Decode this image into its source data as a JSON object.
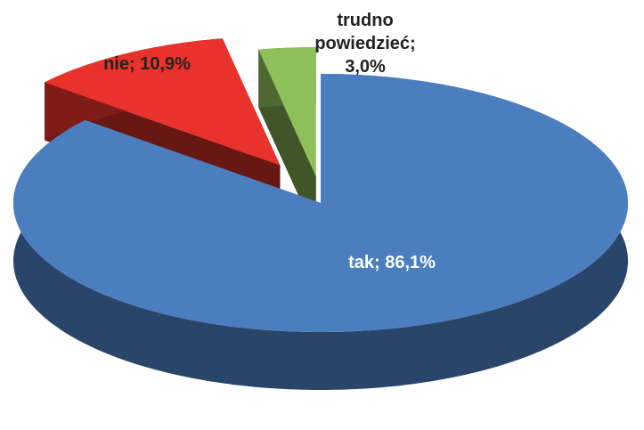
{
  "chart_data": {
    "type": "pie",
    "categories": [
      "tak",
      "nie",
      "trudno powiedzieć"
    ],
    "values": [
      86.1,
      10.9,
      3.0
    ],
    "value_labels": [
      "tak; 86,1%",
      "nie; 10,9%",
      "trudno powiedzieć; 3,0%"
    ],
    "colors": [
      "#4a7ebf",
      "#e8322b",
      "#8fbf5a"
    ]
  }
}
